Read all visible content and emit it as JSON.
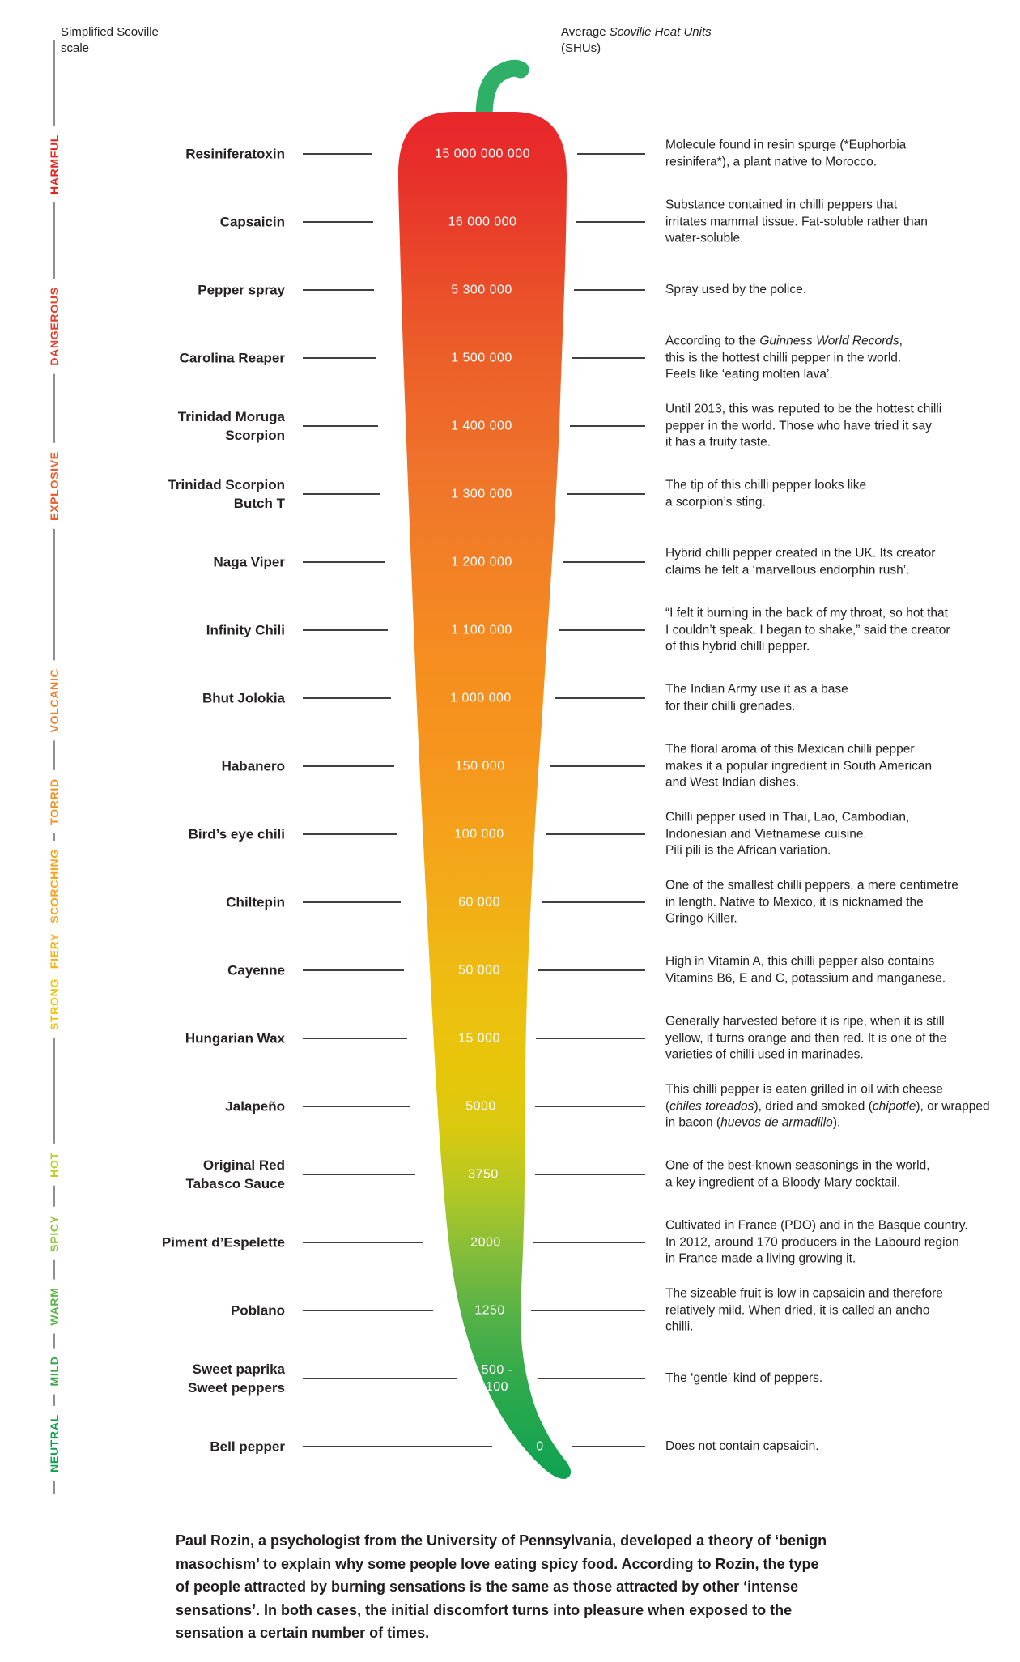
{
  "header": {
    "left_label": "Simplified Scoville\nscale",
    "right_label": "Average *Scoville Heat Units*\n(SHUs)"
  },
  "scale_levels": [
    {
      "label": "HARMFUL",
      "color": "#e52420"
    },
    {
      "label": "DANGEROUS",
      "color": "#e73c28"
    },
    {
      "label": "EXPLOSIVE",
      "color": "#ea5a2a"
    },
    {
      "label": "VOLCANIC",
      "color": "#f07c27"
    },
    {
      "label": "TORRID",
      "color": "#f39120"
    },
    {
      "label": "SCORCHING",
      "color": "#f5a51c"
    },
    {
      "label": "FIERY",
      "color": "#f6b317"
    },
    {
      "label": "STRONG",
      "color": "#edc50e"
    },
    {
      "label": "HOT",
      "color": "#c2cb25"
    },
    {
      "label": "SPICY",
      "color": "#8cc03d"
    },
    {
      "label": "WARM",
      "color": "#5db447"
    },
    {
      "label": "MILD",
      "color": "#3aa94b"
    },
    {
      "label": "NEUTRAL",
      "color": "#11a050"
    }
  ],
  "rows": [
    {
      "name": "Resiniferatoxin",
      "shu": "15 000 000 000",
      "description": "Molecule found in resin spurge (*Euphorbia\nresinifera*), a plant native to Morocco."
    },
    {
      "name": "Capsaicin",
      "shu": "16 000 000",
      "description": "Substance contained in chilli peppers that\nirritates mammal tissue. Fat-soluble rather than\nwater-soluble."
    },
    {
      "name": "Pepper spray",
      "shu": "5 300 000",
      "description": "Spray used by the police."
    },
    {
      "name": "Carolina Reaper",
      "shu": "1 500 000",
      "description": "According to the *Guinness World Records*,\nthis is the hottest chilli pepper in the world.\nFeels like ‘eating molten lava’."
    },
    {
      "name": "Trinidad Moruga\nScorpion",
      "shu": "1 400 000",
      "description": "Until 2013, this was reputed to be the hottest chilli\npepper in the world. Those who have tried it say\nit has a fruity taste."
    },
    {
      "name": "Trinidad Scorpion\nButch T",
      "shu": "1 300 000",
      "description": "The tip of this chilli pepper looks like\na scorpion’s sting."
    },
    {
      "name": "Naga Viper",
      "shu": "1 200 000",
      "description": "Hybrid chilli pepper created in the UK. Its creator\nclaims he felt a ‘marvellous endorphin rush’."
    },
    {
      "name": "Infinity Chili",
      "shu": "1 100 000",
      "description": "“I felt it burning in the back of my throat, so hot that\nI couldn’t speak. I began to shake,” said the creator\nof this hybrid chilli pepper."
    },
    {
      "name": "Bhut Jolokia",
      "shu": "1 000 000",
      "description": "The Indian Army use it as a base\nfor their chilli grenades."
    },
    {
      "name": "Habanero",
      "shu": "150 000",
      "description": "The floral aroma of this Mexican chilli pepper\nmakes it a popular ingredient in South American\nand West Indian dishes."
    },
    {
      "name": "Bird’s eye chili",
      "shu": "100 000",
      "description": "Chilli pepper used in Thai, Lao, Cambodian,\nIndonesian and Vietnamese cuisine.\nPili pili is the African variation."
    },
    {
      "name": "Chiltepin",
      "shu": "60 000",
      "description": "One of the smallest chilli peppers, a mere centimetre\nin length. Native to Mexico, it is nicknamed the\nGringo Killer."
    },
    {
      "name": "Cayenne",
      "shu": "50 000",
      "description": "High in Vitamin A, this chilli pepper also contains\nVitamins B6, E and C, potassium and manganese."
    },
    {
      "name": "Hungarian Wax",
      "shu": "15 000",
      "description": "Generally harvested before it is ripe, when it is still\nyellow, it turns orange and then red. It is one of the\nvarieties of chilli used in marinades."
    },
    {
      "name": "Jalapeño",
      "shu": "5000",
      "description": "This chilli pepper is eaten grilled in oil with cheese\n(*chiles toreados*), dried and smoked (*chipotle*), or wrapped\nin bacon (*huevos de armadillo*)."
    },
    {
      "name": "Original Red\nTabasco Sauce",
      "shu": "3750",
      "description": "One of the best-known seasonings in the world,\na key ingredient of a Bloody Mary cocktail."
    },
    {
      "name": "Piment d’Espelette",
      "shu": "2000",
      "description": "Cultivated in France (PDO) and in the Basque country.\nIn 2012, around 170 producers in the Labourd region\nin France made a living growing it."
    },
    {
      "name": "Poblano",
      "shu": "1250",
      "description": "The sizeable fruit is low in capsaicin and therefore\nrelatively mild. When dried, it is called an ancho\nchilli."
    },
    {
      "name": "Sweet paprika\nSweet peppers",
      "shu": "500 -\n100",
      "description": "The ‘gentle’ kind of peppers."
    },
    {
      "name": "Bell pepper",
      "shu": "0",
      "description": "Does not contain capsaicin."
    }
  ],
  "footer": "Paul Rozin, a psychologist from the University of Pennsylvania, developed a theory of ‘benign\nmasochism’ to explain why some people love eating spicy food. According to Rozin, the type\nof people attracted by burning sensations is the same as those attracted by other ‘intense\nsensations’. In both cases, the initial discomfort turns into pleasure when exposed to the\nsensation a certain number of times.",
  "colors": {
    "pepper_top_red": "#e8262b",
    "pepper_orange": "#f6951d",
    "pepper_yellow": "#e7c60a",
    "pepper_bottom_green": "#0fa252",
    "stem_green": "#2fb068",
    "dash": "#414042",
    "rail": "#8f8f8f",
    "value_text": "#ffffff",
    "body_text": "#232021"
  },
  "chart_data": {
    "type": "table",
    "title": "Simplified Scoville scale",
    "value_axis": "Average Scoville Heat Units (SHUs)",
    "levels_top_to_bottom": [
      "HARMFUL",
      "DANGEROUS",
      "EXPLOSIVE",
      "VOLCANIC",
      "TORRID",
      "SCORCHING",
      "FIERY",
      "STRONG",
      "HOT",
      "SPICY",
      "WARM",
      "MILD",
      "NEUTRAL"
    ],
    "categories": [
      "Resiniferatoxin",
      "Capsaicin",
      "Pepper spray",
      "Carolina Reaper",
      "Trinidad Moruga Scorpion",
      "Trinidad Scorpion Butch T",
      "Naga Viper",
      "Infinity Chili",
      "Bhut Jolokia",
      "Habanero",
      "Bird’s eye chili",
      "Chiltepin",
      "Cayenne",
      "Hungarian Wax",
      "Jalapeño",
      "Original Red Tabasco Sauce",
      "Piment d’Espelette",
      "Poblano",
      "Sweet paprika / Sweet peppers",
      "Bell pepper"
    ],
    "values": [
      15000000000,
      16000000,
      5300000,
      1500000,
      1400000,
      1300000,
      1200000,
      1100000,
      1000000,
      150000,
      100000,
      60000,
      50000,
      15000,
      5000,
      3750,
      2000,
      1250,
      "500-100",
      0
    ]
  }
}
